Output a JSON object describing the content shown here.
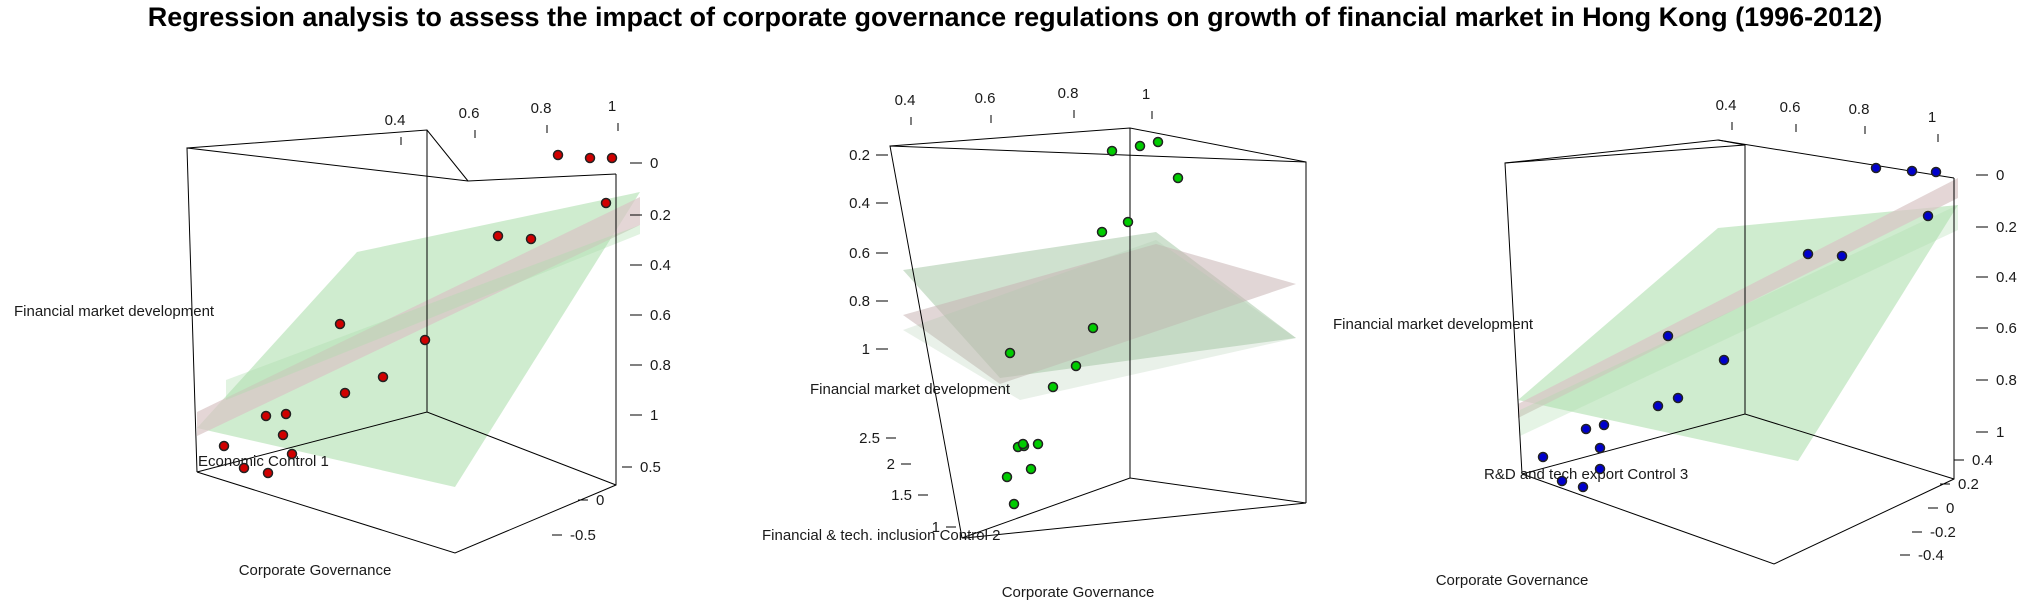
{
  "title": "Regression analysis to assess the impact of corporate governance regulations on growth of financial market in Hong Kong (1996-2012)",
  "chart_data": [
    {
      "type": "scatter3d",
      "x_label": "Corporate Governance",
      "y_label": "Economic Control 1",
      "z_label": "Financial market development",
      "x_ticks": [
        "0.4",
        "0.6",
        "0.8",
        "1"
      ],
      "y_ticks": [
        "-0.5",
        "0",
        "0.5"
      ],
      "z_ticks": [
        "0",
        "0.2",
        "0.4",
        "0.6",
        "0.8",
        "1"
      ],
      "point_color": "#d00000",
      "plane_colors": [
        "#a8dca8",
        "#d9c4c4"
      ],
      "points": [
        {
          "x": 0.95,
          "y": 0.55,
          "z": 1.0
        },
        {
          "x": 0.99,
          "y": 0.55,
          "z": 0.99
        },
        {
          "x": 1.02,
          "y": 0.58,
          "z": 0.99
        },
        {
          "x": 1.0,
          "y": 0.35,
          "z": 0.85
        },
        {
          "x": 0.88,
          "y": 0.3,
          "z": 0.74
        },
        {
          "x": 0.95,
          "y": 0.35,
          "z": 0.73
        },
        {
          "x": 0.58,
          "y": 0.1,
          "z": 0.42
        },
        {
          "x": 0.78,
          "y": 0.15,
          "z": 0.36
        },
        {
          "x": 0.72,
          "y": -0.05,
          "z": 0.25
        },
        {
          "x": 0.6,
          "y": -0.05,
          "z": 0.22
        },
        {
          "x": 0.48,
          "y": -0.1,
          "z": 0.2
        },
        {
          "x": 0.5,
          "y": -0.2,
          "z": 0.18
        },
        {
          "x": 0.5,
          "y": -0.3,
          "z": 0.12
        },
        {
          "x": 0.55,
          "y": -0.45,
          "z": 0.1
        },
        {
          "x": 0.35,
          "y": -0.35,
          "z": 0.05
        },
        {
          "x": 0.38,
          "y": -0.6,
          "z": 0.02
        },
        {
          "x": 0.45,
          "y": -0.65,
          "z": 0.0
        }
      ]
    },
    {
      "type": "scatter3d",
      "x_label": "Corporate Governance",
      "y_label": "Financial & tech. inclusion Control 2",
      "z_label": "Financial market development",
      "x_ticks": [
        "0.4",
        "0.6",
        "0.8",
        "1"
      ],
      "y_ticks": [
        "1",
        "1.5",
        "2",
        "2.5"
      ],
      "z_ticks": [
        "0.2",
        "0.4",
        "0.6",
        "0.8",
        "1"
      ],
      "point_color": "#00cc00",
      "plane_colors": [
        "#a8c8a8",
        "#c8b4b4"
      ],
      "points": [
        {
          "x": 0.92,
          "y": 1.0,
          "z": 1.0
        },
        {
          "x": 0.98,
          "y": 1.0,
          "z": 1.0
        },
        {
          "x": 1.02,
          "y": 1.0,
          "z": 1.02
        },
        {
          "x": 1.05,
          "y": 1.1,
          "z": 0.92
        },
        {
          "x": 0.92,
          "y": 1.2,
          "z": 0.8
        },
        {
          "x": 0.85,
          "y": 1.15,
          "z": 0.76
        },
        {
          "x": 0.82,
          "y": 1.2,
          "z": 0.5
        },
        {
          "x": 0.7,
          "y": 1.35,
          "z": 0.42
        },
        {
          "x": 0.5,
          "y": 1.4,
          "z": 0.45
        },
        {
          "x": 0.68,
          "y": 1.5,
          "z": 0.38
        },
        {
          "x": 0.55,
          "y": 2.2,
          "z": 0.3
        },
        {
          "x": 0.6,
          "y": 2.3,
          "z": 0.28
        },
        {
          "x": 0.62,
          "y": 2.4,
          "z": 0.28
        },
        {
          "x": 0.65,
          "y": 2.4,
          "z": 0.28
        },
        {
          "x": 0.52,
          "y": 2.0,
          "z": 0.24
        },
        {
          "x": 0.6,
          "y": 1.8,
          "z": 0.2
        },
        {
          "x": 0.45,
          "y": 1.1,
          "z": 0.1
        }
      ]
    },
    {
      "type": "scatter3d",
      "x_label": "Corporate Governance",
      "y_label": "R&D and tech export Control 3",
      "z_label": "Financial market development",
      "x_ticks": [
        "0.4",
        "0.6",
        "0.8",
        "1"
      ],
      "y_ticks": [
        "-0.4",
        "-0.2",
        "0",
        "0.2",
        "0.4"
      ],
      "z_ticks": [
        "0",
        "0.2",
        "0.4",
        "0.6",
        "0.8",
        "1"
      ],
      "point_color": "#0000cc",
      "plane_colors": [
        "#a8dca8",
        "#d9c4c4"
      ],
      "points": [
        {
          "x": 0.9,
          "y": 0.4,
          "z": 1.0
        },
        {
          "x": 0.98,
          "y": 0.42,
          "z": 0.99
        },
        {
          "x": 1.02,
          "y": 0.45,
          "z": 0.99
        },
        {
          "x": 1.0,
          "y": 0.3,
          "z": 0.85
        },
        {
          "x": 0.85,
          "y": 0.25,
          "z": 0.74
        },
        {
          "x": 0.92,
          "y": 0.2,
          "z": 0.73
        },
        {
          "x": 0.6,
          "y": 0.1,
          "z": 0.42
        },
        {
          "x": 0.72,
          "y": 0.0,
          "z": 0.38
        },
        {
          "x": 0.62,
          "y": -0.05,
          "z": 0.24
        },
        {
          "x": 0.6,
          "y": -0.1,
          "z": 0.2
        },
        {
          "x": 0.48,
          "y": -0.1,
          "z": 0.15
        },
        {
          "x": 0.55,
          "y": -0.15,
          "z": 0.14
        },
        {
          "x": 0.55,
          "y": -0.25,
          "z": 0.1
        },
        {
          "x": 0.38,
          "y": -0.2,
          "z": 0.05
        },
        {
          "x": 0.55,
          "y": -0.35,
          "z": 0.06
        },
        {
          "x": 0.45,
          "y": -0.45,
          "z": 0.02
        },
        {
          "x": 0.5,
          "y": -0.45,
          "z": 0.01
        }
      ]
    }
  ]
}
